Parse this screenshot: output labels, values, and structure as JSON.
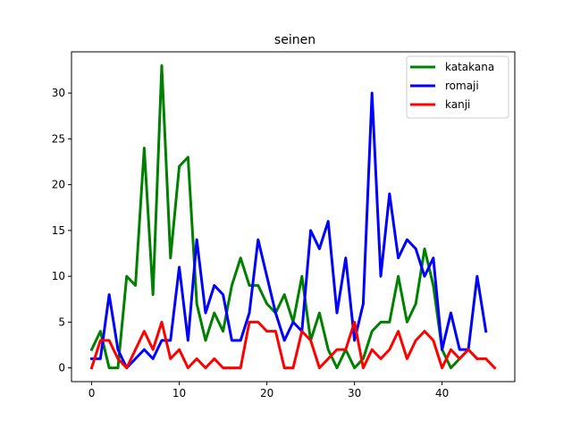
{
  "chart_data": {
    "type": "line",
    "title": "seinen",
    "xlabel": "",
    "ylabel": "",
    "xlim": [
      -2.3,
      48.3
    ],
    "ylim": [
      -1.5,
      34.5
    ],
    "xticks": [
      0,
      10,
      20,
      30,
      40
    ],
    "yticks": [
      0,
      5,
      10,
      15,
      20,
      25,
      30
    ],
    "grid": false,
    "legend_position": "top-right",
    "series": [
      {
        "name": "katakana",
        "color": "#008000",
        "x": [
          0,
          1,
          2,
          3,
          4,
          5,
          6,
          7,
          8,
          9,
          10,
          11,
          12,
          13,
          14,
          15,
          16,
          17,
          18,
          19,
          20,
          21,
          22,
          23,
          24,
          25,
          26,
          27,
          28,
          29,
          30,
          31,
          32,
          33,
          34,
          35,
          36,
          37,
          38,
          39,
          40,
          41,
          42,
          43,
          44
        ],
        "values": [
          2,
          4,
          0,
          0,
          10,
          9,
          24,
          8,
          33,
          12,
          22,
          23,
          7,
          3,
          6,
          4,
          9,
          12,
          9,
          9,
          7,
          6,
          8,
          5,
          10,
          3,
          6,
          2,
          0,
          2,
          0,
          1,
          4,
          5,
          5,
          10,
          5,
          7,
          13,
          9,
          2,
          0,
          1,
          2,
          1
        ]
      },
      {
        "name": "romaji",
        "color": "#0000ff",
        "x": [
          0,
          1,
          2,
          3,
          4,
          5,
          6,
          7,
          8,
          9,
          10,
          11,
          12,
          13,
          14,
          15,
          16,
          17,
          18,
          19,
          20,
          21,
          22,
          23,
          24,
          25,
          26,
          27,
          28,
          29,
          30,
          31,
          32,
          33,
          34,
          35,
          36,
          37,
          38,
          39,
          40,
          41,
          42,
          43,
          44,
          45
        ],
        "values": [
          1,
          1,
          8,
          2,
          0,
          1,
          2,
          1,
          3,
          3,
          11,
          3,
          14,
          6,
          9,
          8,
          3,
          3,
          6,
          14,
          10,
          6,
          3,
          5,
          4,
          15,
          13,
          16,
          6,
          12,
          3,
          7,
          30,
          10,
          19,
          12,
          14,
          13,
          10,
          12,
          2,
          6,
          2,
          2,
          10,
          4
        ]
      },
      {
        "name": "kanji",
        "color": "#ff0000",
        "x": [
          0,
          1,
          2,
          3,
          4,
          5,
          6,
          7,
          8,
          9,
          10,
          11,
          12,
          13,
          14,
          15,
          16,
          17,
          18,
          19,
          20,
          21,
          22,
          23,
          24,
          25,
          26,
          27,
          28,
          29,
          30,
          31,
          32,
          33,
          34,
          35,
          36,
          37,
          38,
          39,
          40,
          41,
          42,
          43,
          44,
          45,
          46
        ],
        "values": [
          0,
          3,
          3,
          1,
          0,
          2,
          4,
          2,
          5,
          1,
          2,
          0,
          1,
          0,
          1,
          0,
          0,
          0,
          5,
          5,
          4,
          4,
          0,
          0,
          4,
          3,
          0,
          1,
          2,
          2,
          5,
          0,
          2,
          1,
          2,
          4,
          1,
          3,
          4,
          3,
          0,
          2,
          1,
          2,
          1,
          1,
          0
        ]
      }
    ]
  }
}
